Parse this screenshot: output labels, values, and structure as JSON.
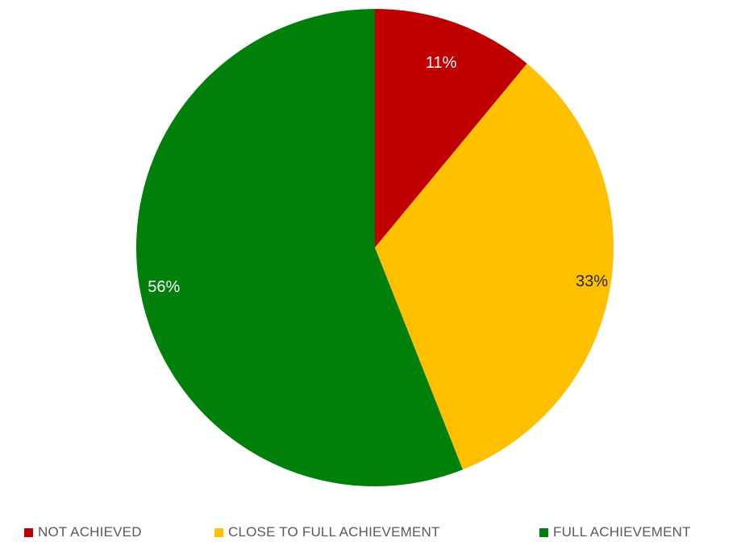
{
  "chart_data": {
    "type": "pie",
    "title": "",
    "categories": [
      "NOT ACHIEVED",
      "CLOSE TO FULL ACHIEVEMENT",
      "FULL ACHIEVEMENT"
    ],
    "values": [
      11,
      33,
      56
    ],
    "value_labels": [
      "11%",
      "33%",
      "56%"
    ],
    "colors": [
      "#C00000",
      "#FFC000",
      "#00800A"
    ],
    "label_colors": [
      "#ffffff",
      "#262626",
      "#ffffff"
    ],
    "legend_position": "bottom",
    "start_angle": "12 o'clock",
    "direction": "clockwise"
  }
}
